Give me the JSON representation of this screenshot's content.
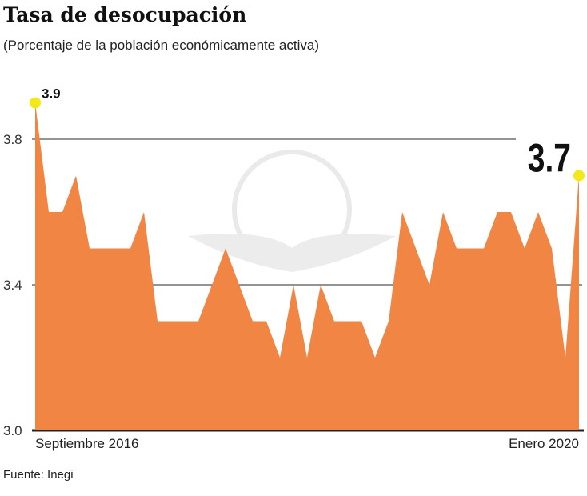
{
  "chart_data": {
    "type": "area",
    "title": "Tasa de desocupación",
    "subtitle": "(Porcentaje de la población económicamente activa)",
    "source": "Fuente: Inegi",
    "x_labels": {
      "start": "Septiembre 2016",
      "end": "Enero 2020"
    },
    "y_ticks": [
      "3.0",
      "3.4",
      "3.8"
    ],
    "ylim": [
      3.0,
      3.9
    ],
    "grid": true,
    "fill_color": "#f08544",
    "highlight_color": "#f5e81a",
    "annotations": [
      {
        "label": "3.9",
        "index": 0
      },
      {
        "label": "3.7",
        "index": 40
      }
    ],
    "values": [
      3.9,
      3.6,
      3.6,
      3.7,
      3.5,
      3.5,
      3.5,
      3.5,
      3.6,
      3.3,
      3.3,
      3.3,
      3.3,
      3.4,
      3.5,
      3.4,
      3.3,
      3.3,
      3.2,
      3.4,
      3.2,
      3.4,
      3.3,
      3.3,
      3.3,
      3.2,
      3.3,
      3.6,
      3.5,
      3.4,
      3.6,
      3.5,
      3.5,
      3.5,
      3.6,
      3.6,
      3.5,
      3.6,
      3.5,
      3.2,
      3.7
    ]
  }
}
